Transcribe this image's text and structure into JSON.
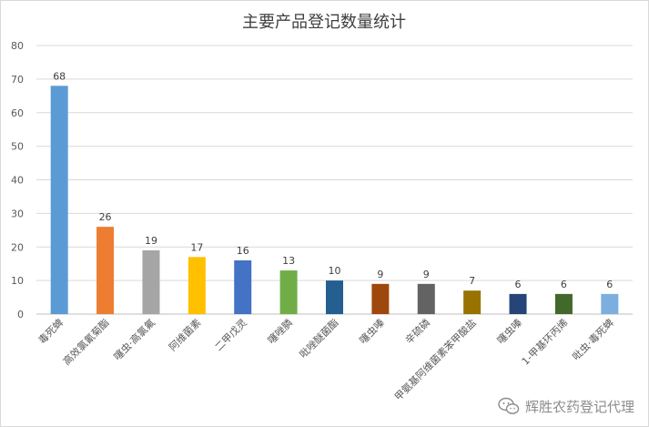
{
  "chart_data": {
    "type": "bar",
    "title": "主要产品登记数量统计",
    "categories": [
      "毒死蜱",
      "高效氯氰菊酯",
      "噻虫·高氯氟",
      "阿维菌素",
      "二甲戊灵",
      "噻唑膦",
      "吡唑醚菌酯",
      "噻虫嗪",
      "辛硫磷",
      "甲氨基阿维菌素苯甲酸盐",
      "噻虫嗪",
      "1-甲基环丙烯",
      "吡虫·毒死蜱"
    ],
    "values": [
      68,
      26,
      19,
      17,
      16,
      13,
      10,
      9,
      9,
      7,
      6,
      6,
      6
    ],
    "bar_colors": [
      "#5b9bd5",
      "#ed7d31",
      "#a5a5a5",
      "#ffc000",
      "#4472c4",
      "#70ad47",
      "#255e91",
      "#9e480e",
      "#636363",
      "#997300",
      "#264478",
      "#43682b",
      "#7cafdd"
    ],
    "ylim": [
      0,
      80
    ],
    "yticks": [
      0,
      10,
      20,
      30,
      40,
      50,
      60,
      70,
      80
    ],
    "grid": true,
    "xlabel": "",
    "ylabel": ""
  },
  "watermark": {
    "text": "辉胜农药登记代理",
    "icon": "wechat-icon"
  }
}
